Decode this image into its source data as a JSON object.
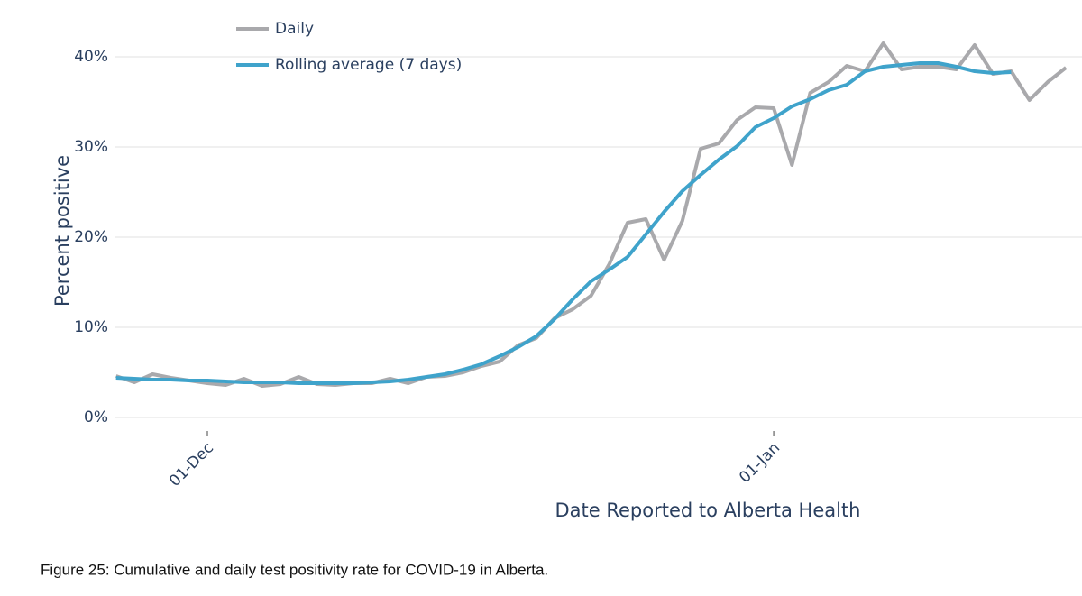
{
  "chart_data": {
    "type": "line",
    "ylabel": "Percent positive",
    "xlabel": "Date Reported to Alberta Health",
    "caption": "Figure 25: Cumulative and daily test positivity rate for COVID-19 in Alberta.",
    "x": [
      "26-Nov",
      "27-Nov",
      "28-Nov",
      "29-Nov",
      "30-Nov",
      "01-Dec",
      "02-Dec",
      "03-Dec",
      "04-Dec",
      "05-Dec",
      "06-Dec",
      "07-Dec",
      "08-Dec",
      "09-Dec",
      "10-Dec",
      "11-Dec",
      "12-Dec",
      "13-Dec",
      "14-Dec",
      "15-Dec",
      "16-Dec",
      "17-Dec",
      "18-Dec",
      "19-Dec",
      "20-Dec",
      "21-Dec",
      "22-Dec",
      "23-Dec",
      "24-Dec",
      "25-Dec",
      "26-Dec",
      "27-Dec",
      "28-Dec",
      "29-Dec",
      "30-Dec",
      "31-Dec",
      "01-Jan",
      "02-Jan",
      "03-Jan",
      "04-Jan",
      "05-Jan",
      "06-Jan",
      "07-Jan",
      "08-Jan",
      "09-Jan",
      "10-Jan",
      "11-Jan",
      "12-Jan",
      "13-Jan",
      "14-Jan",
      "15-Jan",
      "16-Jan",
      "17-Jan"
    ],
    "xticks": [
      "01-Dec",
      "01-Jan"
    ],
    "series": [
      {
        "name": "Daily",
        "color": "#a9a9ac",
        "values": [
          4.6,
          3.9,
          4.8,
          4.4,
          4.1,
          3.8,
          3.6,
          4.3,
          3.5,
          3.7,
          4.5,
          3.7,
          3.6,
          3.8,
          3.8,
          4.3,
          3.8,
          4.5,
          4.6,
          5.0,
          5.7,
          6.2,
          8.0,
          8.8,
          11.0,
          12.0,
          13.5,
          17.0,
          21.6,
          22.0,
          17.5,
          21.8,
          29.8,
          30.4,
          33.0,
          34.4,
          34.3,
          28.0,
          36.0,
          37.2,
          39.0,
          38.4,
          41.5,
          38.6,
          38.9,
          38.9,
          38.6,
          41.3,
          38.1,
          38.4,
          35.2,
          37.2,
          38.8
        ]
      },
      {
        "name": "Rolling average (7 days)",
        "color": "#3fa3cb",
        "values": [
          4.4,
          4.3,
          4.2,
          4.2,
          4.1,
          4.1,
          4.0,
          3.9,
          3.9,
          3.9,
          3.8,
          3.8,
          3.8,
          3.8,
          3.9,
          4.0,
          4.2,
          4.5,
          4.8,
          5.3,
          5.9,
          6.8,
          7.8,
          9.0,
          10.9,
          13.1,
          15.1,
          16.4,
          17.8,
          20.3,
          22.8,
          25.1,
          26.9,
          28.6,
          30.1,
          32.2,
          33.2,
          34.5,
          35.3,
          36.3,
          36.9,
          38.4,
          38.9,
          39.1,
          39.3,
          39.3,
          38.9,
          38.4,
          38.2,
          38.3,
          null,
          null,
          null
        ]
      }
    ],
    "ylim": [
      -1.5,
      42.5
    ],
    "yticks": [
      {
        "value": 0,
        "label": "0%"
      },
      {
        "value": 10,
        "label": "10%"
      },
      {
        "value": 20,
        "label": "20%"
      },
      {
        "value": 30,
        "label": "30%"
      },
      {
        "value": 40,
        "label": "40%"
      }
    ],
    "grid": true,
    "legend": "top-left"
  }
}
